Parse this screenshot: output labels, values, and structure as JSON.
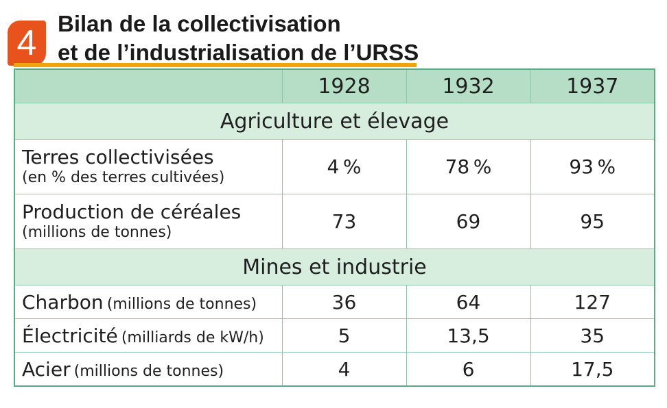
{
  "document": {
    "number": "4",
    "title_line1": "Bilan de la collectivisation",
    "title_line2": "et de l’industrialisation de l’URSS"
  },
  "table": {
    "years": [
      "1928",
      "1932",
      "1937"
    ],
    "sections": [
      {
        "title": "Agriculture et élevage",
        "rows": [
          {
            "label": "Terres collectivisées",
            "unit": "(en % des terres cultivées)",
            "values": [
              "4 %",
              "78 %",
              "93 %"
            ]
          },
          {
            "label": "Production de céréales",
            "unit": "(millions de tonnes)",
            "values": [
              "73",
              "69",
              "95"
            ]
          }
        ]
      },
      {
        "title": "Mines et industrie",
        "rows": [
          {
            "label": "Charbon",
            "unit": "(millions de tonnes)",
            "values": [
              "36",
              "64",
              "127"
            ]
          },
          {
            "label": "Électricité",
            "unit": "(milliards de kW/h)",
            "values": [
              "5",
              "13,5",
              "35"
            ]
          },
          {
            "label": "Acier",
            "unit": "(millions de tonnes)",
            "values": [
              "4",
              "6",
              "17,5"
            ]
          }
        ]
      }
    ]
  }
}
